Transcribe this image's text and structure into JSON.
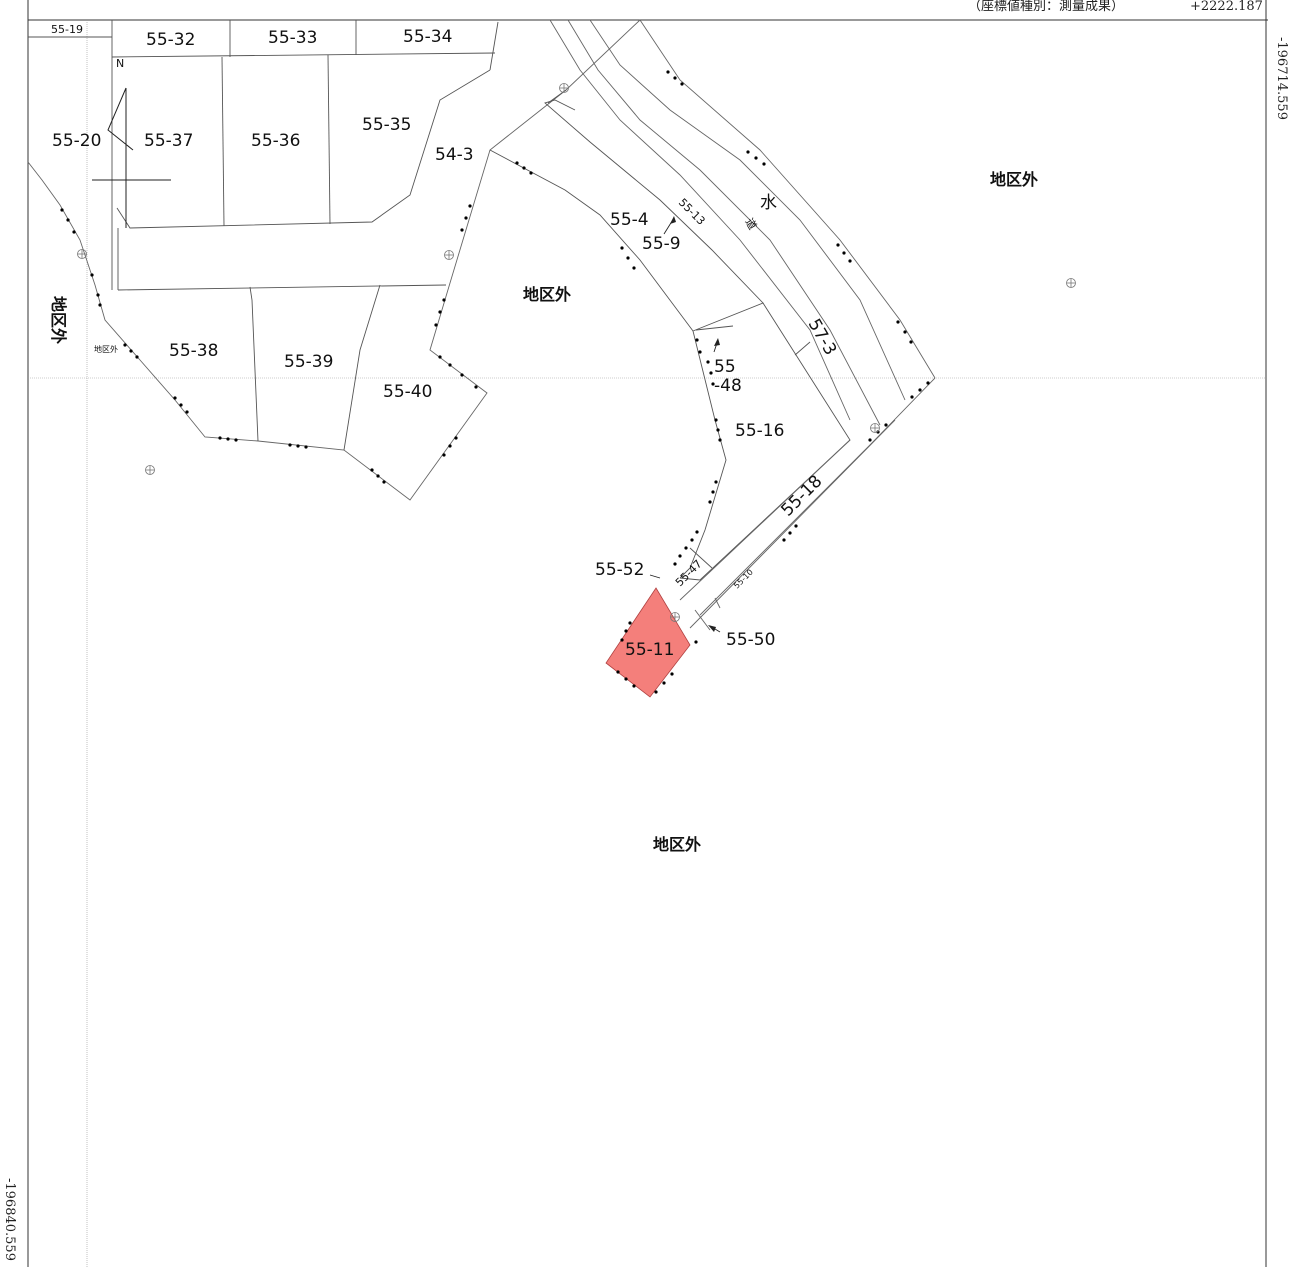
{
  "header": {
    "coord_type_note": "（座標値種別：測量成果）",
    "top_coordinate": "+2222.187"
  },
  "side_coordinates": {
    "right": "-196714.559",
    "left": "-196840.559"
  },
  "north_label": "N",
  "highlight_color": "#f47f7b",
  "parcels": {
    "p55_19": "55-19",
    "p55_32": "55-32",
    "p55_33": "55-33",
    "p55_34": "55-34",
    "p55_20": "55-20",
    "p55_37": "55-37",
    "p55_36": "55-36",
    "p55_35": "55-35",
    "p54_3": "54-3",
    "p55_4": "55-4",
    "p55_9": "55-9",
    "p55_13": "55-13",
    "p55_38": "55-38",
    "p55_39": "55-39",
    "p55_40": "55-40",
    "p55_48a": "55",
    "p55_48b": "-48",
    "p55_16": "55-16",
    "p57_3": "57-3",
    "p55_18": "55-18",
    "p55_52": "55-52",
    "p55_47": "55-47",
    "p55_10": "55-10",
    "p55_50": "55-50",
    "p55_11": "55-11"
  },
  "areas": {
    "outside_ne": "地区外",
    "outside_center": "地区外",
    "outside_left": "地区外",
    "outside_small": "地区外",
    "outside_south": "地区外"
  },
  "waterway": {
    "char1": "水",
    "char2": "道"
  }
}
